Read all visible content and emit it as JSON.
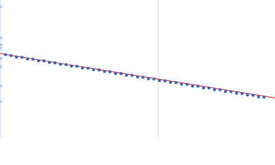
{
  "chart_data": {
    "type": "scatter",
    "xlim": [
      0,
      1
    ],
    "ylim": [
      0,
      1
    ],
    "series": [
      {
        "color": "#3565b8",
        "x": [
          0.02,
          0.04,
          0.06,
          0.08,
          0.1,
          0.12,
          0.14,
          0.16,
          0.18,
          0.2,
          0.22,
          0.24,
          0.26,
          0.28,
          0.3,
          0.32,
          0.34,
          0.36,
          0.38,
          0.4,
          0.42,
          0.44,
          0.46,
          0.48,
          0.5,
          0.52,
          0.54,
          0.56,
          0.58,
          0.6,
          0.62,
          0.64,
          0.66,
          0.68,
          0.7,
          0.72,
          0.74,
          0.76,
          0.78,
          0.8,
          0.82,
          0.84,
          0.86,
          0.88,
          0.9,
          0.92,
          0.94,
          0.96
        ],
        "values": [
          0.603,
          0.596,
          0.585,
          0.583,
          0.571,
          0.569,
          0.558,
          0.557,
          0.546,
          0.543,
          0.532,
          0.53,
          0.519,
          0.517,
          0.506,
          0.504,
          0.493,
          0.491,
          0.48,
          0.478,
          0.466,
          0.465,
          0.453,
          0.452,
          0.44,
          0.438,
          0.427,
          0.425,
          0.414,
          0.412,
          0.401,
          0.399,
          0.388,
          0.386,
          0.374,
          0.373,
          0.361,
          0.36,
          0.348,
          0.347,
          0.335,
          0.333,
          0.322,
          0.32,
          0.309,
          0.307,
          0.296,
          0.292
        ]
      },
      {
        "color": "#b9cbe8",
        "x": [
          0.003,
          0.003,
          0.004,
          0.003,
          0.004,
          0.003,
          0.003,
          0.002
        ],
        "values": [
          0.95,
          0.725,
          0.675,
          0.65,
          0.575,
          0.515,
          0.375,
          0.26
        ]
      }
    ],
    "fit": {
      "type": "line",
      "color": "#e03a3a",
      "x": [
        0,
        1
      ],
      "values": [
        0.61,
        0.288
      ]
    }
  }
}
